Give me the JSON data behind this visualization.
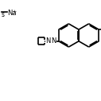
{
  "bg_color": "#ffffff",
  "line_color": "#000000",
  "lw": 1.2,
  "fig_size": [
    1.27,
    1.27
  ],
  "dpi": 100,
  "xlim": [
    0,
    10
  ],
  "ylim": [
    0,
    10
  ],
  "na_text": "Na",
  "plus_text": "+",
  "dash_text": "—",
  "s_text": "s",
  "N_text": "N"
}
